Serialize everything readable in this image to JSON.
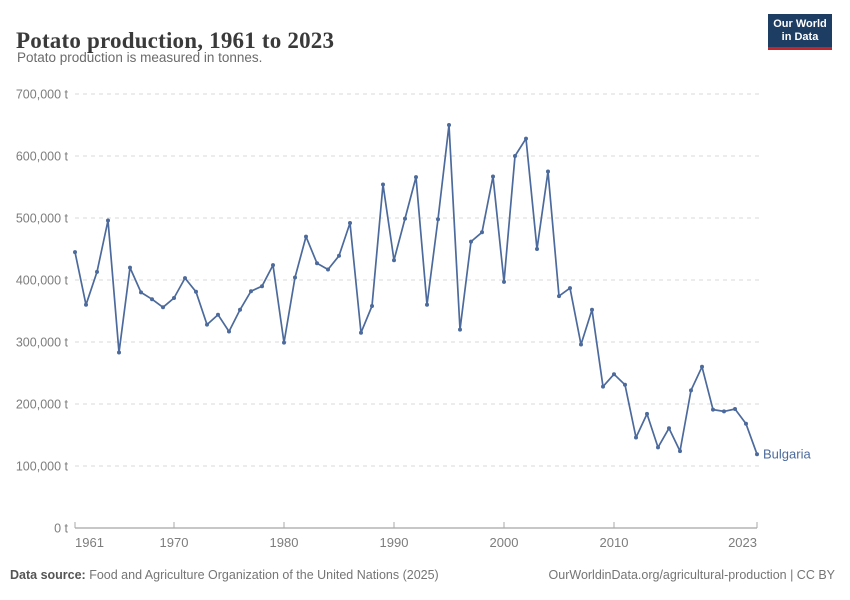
{
  "header": {
    "title": "Potato production, 1961 to 2023",
    "subtitle": "Potato production is measured in tonnes."
  },
  "logo": {
    "line1": "Our World",
    "line2": "in Data",
    "bg_color": "#1d3d63",
    "bar_color": "#c0262c"
  },
  "chart_data": {
    "type": "line",
    "title": "Potato production, 1961 to 2023",
    "unit": "tonnes",
    "xlim": [
      1961,
      2023
    ],
    "ylim": [
      0,
      700000
    ],
    "grid": true,
    "legend_position": "end-of-line-label",
    "x": [
      1961,
      1962,
      1963,
      1964,
      1965,
      1966,
      1967,
      1968,
      1969,
      1970,
      1971,
      1972,
      1973,
      1974,
      1975,
      1976,
      1977,
      1978,
      1979,
      1980,
      1981,
      1982,
      1983,
      1984,
      1985,
      1986,
      1987,
      1988,
      1989,
      1990,
      1991,
      1992,
      1993,
      1994,
      1995,
      1996,
      1997,
      1998,
      1999,
      2000,
      2001,
      2002,
      2003,
      2004,
      2005,
      2006,
      2007,
      2008,
      2009,
      2010,
      2011,
      2012,
      2013,
      2014,
      2015,
      2016,
      2017,
      2018,
      2019,
      2020,
      2021,
      2022,
      2023
    ],
    "series": [
      {
        "name": "Bulgaria",
        "color": "#4C6A9C",
        "values": [
          445000,
          360000,
          413000,
          496000,
          283000,
          420000,
          380000,
          369000,
          356000,
          371000,
          403000,
          381000,
          328000,
          344000,
          317000,
          352000,
          382000,
          390000,
          424000,
          299000,
          404000,
          470000,
          427000,
          417000,
          439000,
          492000,
          315000,
          358000,
          554000,
          432000,
          499000,
          566000,
          360000,
          498000,
          650000,
          320000,
          462000,
          477000,
          567000,
          397000,
          600000,
          628000,
          450000,
          575000,
          374000,
          387000,
          296000,
          352000,
          228000,
          248000,
          231000,
          146000,
          184000,
          130000,
          161000,
          124000,
          222000,
          260000,
          191000,
          188000,
          192000,
          168000,
          119000
        ]
      }
    ],
    "y_ticks": [
      {
        "value": 0,
        "label": "0 t"
      },
      {
        "value": 100000,
        "label": "100,000 t"
      },
      {
        "value": 200000,
        "label": "200,000 t"
      },
      {
        "value": 300000,
        "label": "300,000 t"
      },
      {
        "value": 400000,
        "label": "400,000 t"
      },
      {
        "value": 500000,
        "label": "500,000 t"
      },
      {
        "value": 600000,
        "label": "600,000 t"
      },
      {
        "value": 700000,
        "label": "700,000 t"
      }
    ],
    "x_ticks": [
      {
        "year": 1961,
        "label": "1961"
      },
      {
        "year": 1970,
        "label": "1970"
      },
      {
        "year": 1980,
        "label": "1980"
      },
      {
        "year": 1990,
        "label": "1990"
      },
      {
        "year": 2000,
        "label": "2000"
      },
      {
        "year": 2010,
        "label": "2010"
      },
      {
        "year": 2023,
        "label": "2023"
      }
    ],
    "colors": {
      "gridline": "#d9d9d9",
      "axis": "#8f8f8f",
      "tick": "#a8a8a8",
      "tick_label": "#7d7d7d"
    }
  },
  "footer": {
    "source_label": "Data source:",
    "source_text": " Food and Agriculture Organization of the United Nations (2025)",
    "right_text": "OurWorldinData.org/agricultural-production | CC BY"
  }
}
